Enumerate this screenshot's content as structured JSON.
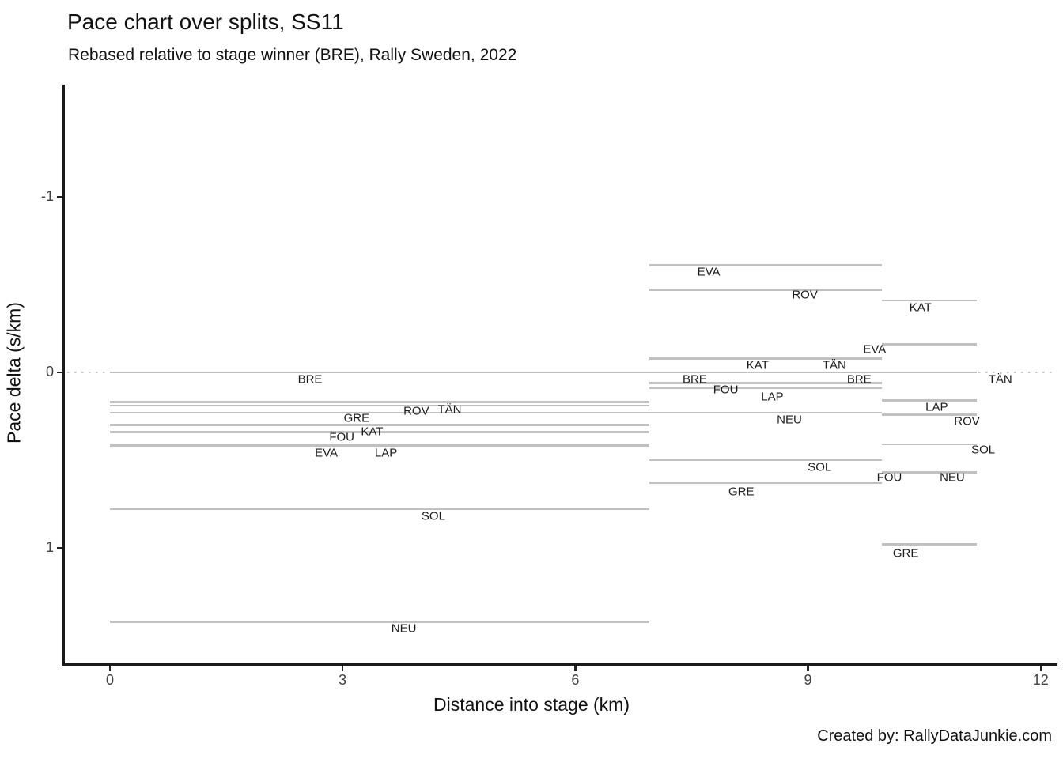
{
  "page": {
    "caption": "Created by: RallyDataJunkie.com"
  },
  "chart_data": {
    "type": "line",
    "subtype": "horizontal-split-segments-pace-chart",
    "title": "Pace chart over splits, SS11",
    "subtitle": "Rebased relative to stage winner (BRE), Rally Sweden, 2022",
    "xlabel": "Distance into stage (km)",
    "ylabel": "Pace delta (s/km)",
    "stage": "SS11",
    "winner": "BRE",
    "units": "s/km",
    "grid": false,
    "legend": "none (direct labels on segments)",
    "x_ticks": [
      0,
      3,
      6,
      9,
      12
    ],
    "y_ticks": [
      -1,
      0,
      1
    ],
    "xlim": [
      -0.6,
      12.2
    ],
    "ylim": [
      -1.64,
      1.67
    ],
    "y_axis_inverted": true,
    "split_boundaries_km": [
      0,
      6.95,
      9.95,
      11.18
    ],
    "reference_line": {
      "delta": 0,
      "style": "dotted",
      "from_km": -0.55,
      "to_km": 12.15
    },
    "segments": [
      {
        "driver": "BRE",
        "from_km": 0,
        "to_km": 6.95,
        "delta": 0.0
      },
      {
        "driver": "BRE",
        "from_km": 6.95,
        "to_km": 9.95,
        "delta": 0.0
      },
      {
        "driver": "BRE",
        "from_km": 9.95,
        "to_km": 11.18,
        "delta": 0.0
      },
      {
        "driver": "ROV",
        "from_km": 0,
        "to_km": 6.95,
        "delta": 0.17
      },
      {
        "driver": "ROV",
        "from_km": 6.95,
        "to_km": 9.95,
        "delta": -0.47
      },
      {
        "driver": "ROV",
        "from_km": 9.95,
        "to_km": 11.18,
        "delta": 0.24
      },
      {
        "driver": "TÄN",
        "from_km": 0,
        "to_km": 6.95,
        "delta": 0.19
      },
      {
        "driver": "TÄN",
        "from_km": 6.95,
        "to_km": 9.95,
        "delta": -0.08
      },
      {
        "driver": "TÄN",
        "from_km": 9.95,
        "to_km": 11.18,
        "delta": 0.0
      },
      {
        "driver": "GRE",
        "from_km": 0,
        "to_km": 6.95,
        "delta": 0.23
      },
      {
        "driver": "GRE",
        "from_km": 6.95,
        "to_km": 9.95,
        "delta": 0.63
      },
      {
        "driver": "GRE",
        "from_km": 9.95,
        "to_km": 11.18,
        "delta": 0.98
      },
      {
        "driver": "KAT",
        "from_km": 0,
        "to_km": 6.95,
        "delta": 0.3
      },
      {
        "driver": "KAT",
        "from_km": 6.95,
        "to_km": 9.95,
        "delta": -0.08
      },
      {
        "driver": "KAT",
        "from_km": 9.95,
        "to_km": 11.18,
        "delta": -0.41
      },
      {
        "driver": "FOU",
        "from_km": 0,
        "to_km": 6.95,
        "delta": 0.34
      },
      {
        "driver": "FOU",
        "from_km": 6.95,
        "to_km": 9.95,
        "delta": 0.06
      },
      {
        "driver": "FOU",
        "from_km": 9.95,
        "to_km": 11.18,
        "delta": 0.57
      },
      {
        "driver": "LAP",
        "from_km": 0,
        "to_km": 6.95,
        "delta": 0.41
      },
      {
        "driver": "LAP",
        "from_km": 6.95,
        "to_km": 9.95,
        "delta": 0.09
      },
      {
        "driver": "LAP",
        "from_km": 9.95,
        "to_km": 11.18,
        "delta": 0.16
      },
      {
        "driver": "EVA",
        "from_km": 0,
        "to_km": 6.95,
        "delta": 0.42
      },
      {
        "driver": "EVA",
        "from_km": 6.95,
        "to_km": 9.95,
        "delta": -0.61
      },
      {
        "driver": "EVA",
        "from_km": 9.95,
        "to_km": 11.18,
        "delta": -0.16
      },
      {
        "driver": "SOL",
        "from_km": 0,
        "to_km": 6.95,
        "delta": 0.78
      },
      {
        "driver": "SOL",
        "from_km": 6.95,
        "to_km": 9.95,
        "delta": 0.5
      },
      {
        "driver": "SOL",
        "from_km": 9.95,
        "to_km": 11.18,
        "delta": 0.41
      },
      {
        "driver": "NEU",
        "from_km": 0,
        "to_km": 6.95,
        "delta": 1.42
      },
      {
        "driver": "NEU",
        "from_km": 6.95,
        "to_km": 9.95,
        "delta": 0.23
      },
      {
        "driver": "NEU",
        "from_km": 9.95,
        "to_km": 11.18,
        "delta": 0.57
      }
    ],
    "labels": [
      {
        "driver": "BRE",
        "km": 2.58,
        "delta": 0.04
      },
      {
        "driver": "BRE",
        "km": 7.54,
        "delta": 0.04
      },
      {
        "driver": "BRE",
        "km": 9.66,
        "delta": 0.04
      },
      {
        "driver": "ROV",
        "km": 3.95,
        "delta": 0.22
      },
      {
        "driver": "ROV",
        "km": 8.96,
        "delta": -0.44
      },
      {
        "driver": "ROV",
        "km": 11.05,
        "delta": 0.28
      },
      {
        "driver": "TÄN",
        "km": 4.38,
        "delta": 0.21
      },
      {
        "driver": "TÄN",
        "km": 9.34,
        "delta": -0.04
      },
      {
        "driver": "TÄN",
        "km": 11.48,
        "delta": 0.04
      },
      {
        "driver": "GRE",
        "km": 3.18,
        "delta": 0.26
      },
      {
        "driver": "GRE",
        "km": 8.14,
        "delta": 0.68
      },
      {
        "driver": "GRE",
        "km": 10.26,
        "delta": 1.03
      },
      {
        "driver": "KAT",
        "km": 3.38,
        "delta": 0.34
      },
      {
        "driver": "KAT",
        "km": 8.35,
        "delta": -0.04
      },
      {
        "driver": "KAT",
        "km": 10.45,
        "delta": -0.37
      },
      {
        "driver": "FOU",
        "km": 2.99,
        "delta": 0.37
      },
      {
        "driver": "FOU",
        "km": 7.94,
        "delta": 0.1
      },
      {
        "driver": "FOU",
        "km": 10.05,
        "delta": 0.6
      },
      {
        "driver": "LAP",
        "km": 3.56,
        "delta": 0.46
      },
      {
        "driver": "LAP",
        "km": 8.54,
        "delta": 0.14
      },
      {
        "driver": "LAP",
        "km": 10.66,
        "delta": 0.2
      },
      {
        "driver": "EVA",
        "km": 2.79,
        "delta": 0.46
      },
      {
        "driver": "EVA",
        "km": 7.72,
        "delta": -0.57
      },
      {
        "driver": "EVA",
        "km": 9.86,
        "delta": -0.13
      },
      {
        "driver": "SOL",
        "km": 4.17,
        "delta": 0.82
      },
      {
        "driver": "SOL",
        "km": 9.15,
        "delta": 0.54
      },
      {
        "driver": "SOL",
        "km": 11.26,
        "delta": 0.44
      },
      {
        "driver": "NEU",
        "km": 3.79,
        "delta": 1.46
      },
      {
        "driver": "NEU",
        "km": 8.76,
        "delta": 0.27
      },
      {
        "driver": "NEU",
        "km": 10.86,
        "delta": 0.6
      }
    ],
    "colors": {
      "segment": "#c1c1c1",
      "reference_dotted": "#c9c9c9",
      "axis": "#1a1a1a",
      "tick_label": "#414141",
      "label_text": "#1c1c1c",
      "background": "#ffffff"
    }
  }
}
